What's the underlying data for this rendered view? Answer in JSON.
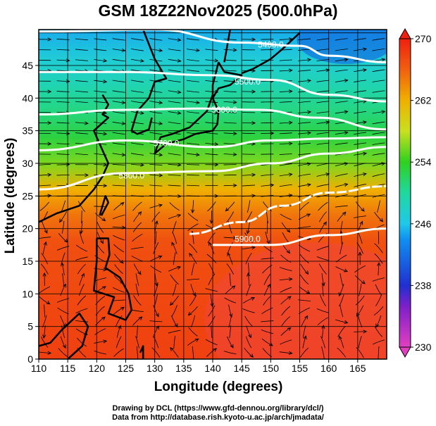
{
  "title": "GSM 18Z22Nov2025 (500.0hPa)",
  "credits": {
    "line1": "Drawing by DCL (https://www.gfd-dennou.org/library/dcl/)",
    "line2": "Data from http://database.rish.kyoto-u.ac.jp/arch/jmadata/"
  },
  "chart_data": {
    "type": "heatmap",
    "title": "GSM 18Z22Nov2025 (500.0hPa)",
    "xlabel": "Longitude (degrees)",
    "ylabel": "Latitude  (degrees)",
    "xlim": [
      110,
      170
    ],
    "ylim": [
      0,
      50.5
    ],
    "xticks": [
      "110",
      "115",
      "120",
      "125",
      "130",
      "135",
      "140",
      "145",
      "150",
      "155",
      "160",
      "165"
    ],
    "yticks": [
      "0",
      "5",
      "10",
      "15",
      "20",
      "25",
      "30",
      "35",
      "40",
      "45"
    ],
    "colorbar": {
      "range": [
        230,
        270
      ],
      "ticks": [
        "270",
        "262",
        "254",
        "246",
        "238",
        "230"
      ]
    },
    "shading_field_by_lat": [
      [
        0,
        268
      ],
      [
        18,
        267
      ],
      [
        22,
        265
      ],
      [
        26,
        262
      ],
      [
        30,
        256
      ],
      [
        34,
        253
      ],
      [
        38,
        251
      ],
      [
        42,
        249
      ],
      [
        46,
        247
      ],
      [
        50.5,
        245
      ]
    ],
    "colors": {
      "230": "#e040c0",
      "238": "#2030d0",
      "246": "#20c8e8",
      "254": "#30d020",
      "262": "#f0b000",
      "270": "#f02010"
    },
    "contours": [
      {
        "label": "5400.0",
        "points": [
          [
            110,
            50.2
          ],
          [
            130,
            50.5
          ],
          [
            145,
            48.5
          ],
          [
            155,
            48
          ],
          [
            160,
            46.5
          ],
          [
            170,
            45.5
          ]
        ]
      },
      {
        "label": "5500.0",
        "points": [
          [
            110,
            44
          ],
          [
            125,
            44
          ],
          [
            140,
            43.5
          ],
          [
            150,
            42.8
          ],
          [
            160,
            40.5
          ],
          [
            170,
            39.5
          ]
        ]
      },
      {
        "label": "5600.0",
        "points": [
          [
            110,
            37.5
          ],
          [
            125,
            38.2
          ],
          [
            138,
            38.4
          ],
          [
            148,
            38.2
          ],
          [
            158,
            37
          ],
          [
            170,
            35.2
          ]
        ]
      },
      {
        "label": "5700.0",
        "points": [
          [
            110,
            32
          ],
          [
            125,
            33.5
          ],
          [
            140,
            32.5
          ],
          [
            150,
            33.5
          ],
          [
            160,
            33.8
          ],
          [
            170,
            34
          ]
        ]
      },
      {
        "label": "5800.0",
        "points": [
          [
            110,
            26
          ],
          [
            125,
            28.5
          ],
          [
            140,
            28.8
          ],
          [
            150,
            30
          ],
          [
            160,
            31.5
          ],
          [
            170,
            32.5
          ]
        ]
      },
      {
        "label": "5900.0",
        "points": [
          [
            136,
            19.2
          ],
          [
            145,
            21
          ],
          [
            152,
            23.5
          ],
          [
            160,
            25.5
          ],
          [
            170,
            26.5
          ]
        ]
      },
      {
        "label": "",
        "points": [
          [
            140,
            17.5
          ],
          [
            150,
            17.5
          ],
          [
            160,
            19
          ],
          [
            170,
            20
          ]
        ]
      }
    ]
  }
}
